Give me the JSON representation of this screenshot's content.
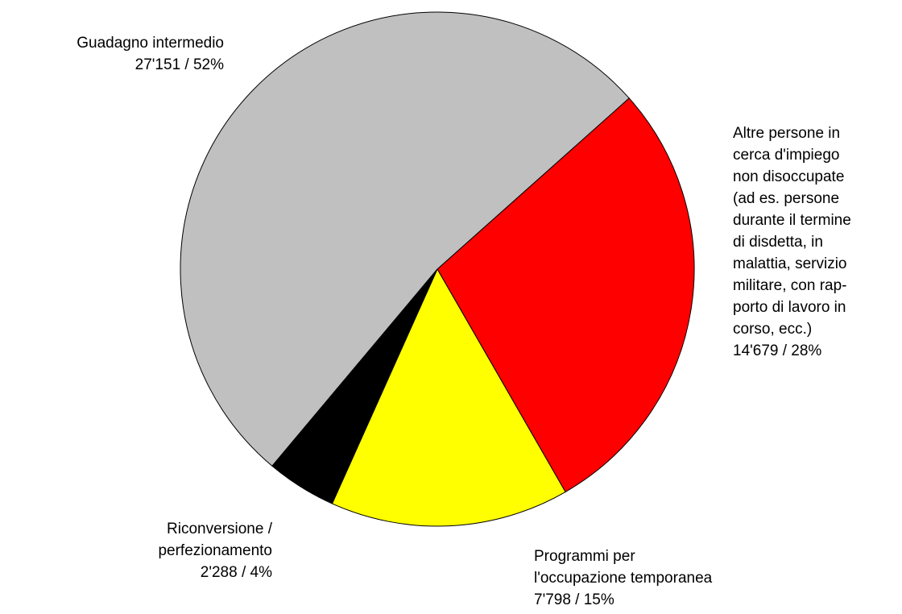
{
  "chart_data": {
    "type": "pie",
    "categories": [
      "Altre persone in\ncerca d'impiego\nnon disoccupate\n(ad es. persone\ndurante il termine\ndi disdetta, in\nmalattia, servizio\nmilitare, con rap-\nporto di lavoro in\ncorso, ecc.)",
      "Programmi per\nl'occupazione temporanea",
      "Riconversione /\nperfezionamento",
      "Guadagno intermedio"
    ],
    "values": [
      14679,
      7798,
      2288,
      27151
    ],
    "value_labels": [
      "14'679 / 28%",
      "7'798 / 15%",
      "2'288 / 4%",
      "27'151 / 52%"
    ],
    "colors": [
      "#ff0000",
      "#ffff00",
      "#000000",
      "#c0c0c0"
    ]
  }
}
